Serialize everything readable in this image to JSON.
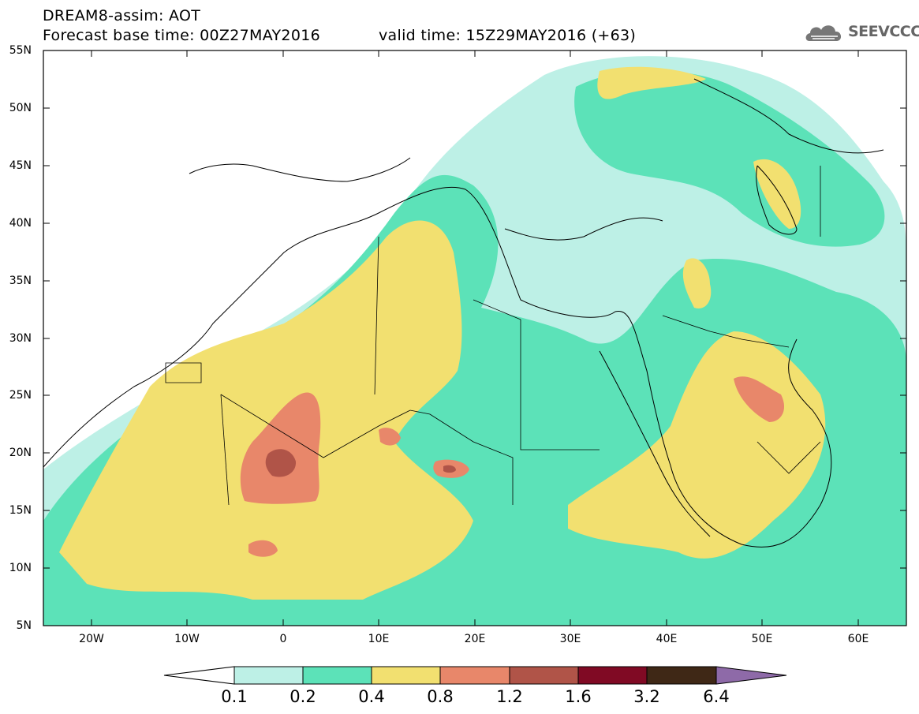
{
  "header": {
    "title": "DREAM8-assim: AOT",
    "base_time": "Forecast base time: 00Z27MAY2016",
    "valid_time": "valid time: 15Z29MAY2016 (+63)",
    "logo_text": "SEEVCCC"
  },
  "map": {
    "projection": "cylindrical equidistant",
    "lon_range": [
      -25,
      65
    ],
    "lat_range": [
      5,
      55
    ],
    "lat_labels": [
      "55N",
      "50N",
      "45N",
      "40N",
      "35N",
      "30N",
      "25N",
      "20N",
      "15N",
      "10N",
      "5N"
    ],
    "lon_labels": [
      "20W",
      "10W",
      "0",
      "10E",
      "20E",
      "30E",
      "40E",
      "50E",
      "60E"
    ],
    "features": [
      "coastlines",
      "country-borders",
      "aot-shaded-contours"
    ]
  },
  "colorbar": {
    "levels": [
      "0.1",
      "0.2",
      "0.4",
      "0.8",
      "1.2",
      "1.6",
      "3.2",
      "6.4"
    ],
    "colors": [
      "#bdf0e6",
      "#5ce2b8",
      "#f2e070",
      "#e8876a",
      "#b05448",
      "#800a24",
      "#3f2816",
      "#8e6aa8"
    ],
    "extend": "both"
  }
}
